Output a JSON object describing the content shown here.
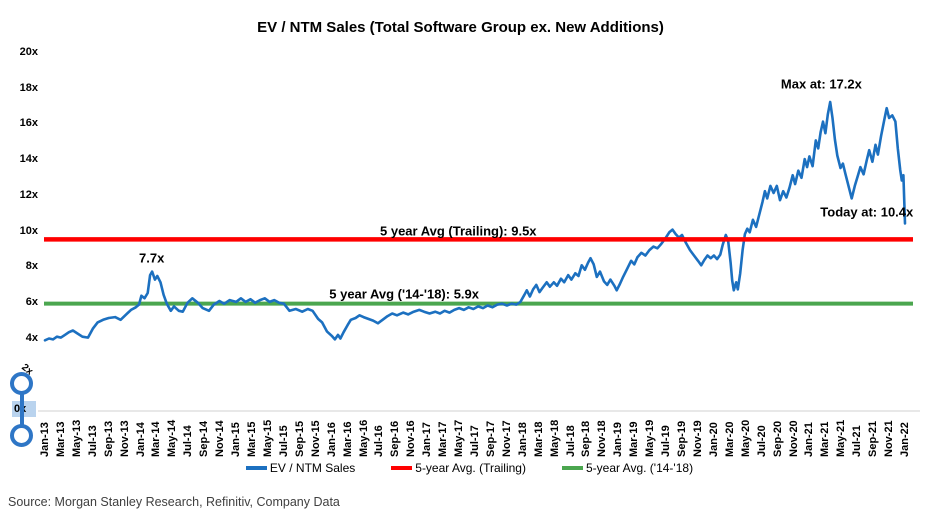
{
  "source": "Source: Morgan Stanley Research, Refinitiv, Company Data",
  "selection_artifact": {
    "displaced_tick": "2x",
    "highlighted_tick": "0x",
    "handle_color": "#2E76C6",
    "highlight_color": "#B9D3EE"
  },
  "chart_data": {
    "type": "line",
    "title": "EV / NTM Sales (Total Software Group ex. New Additions)",
    "grid": false,
    "plot_background": "#FFFFFF",
    "axis_line_color": "#D9D9D9",
    "y_axis": {
      "ylim": [
        0,
        20
      ],
      "tick_step": 2,
      "tick_labels": [
        "20x",
        "18x",
        "16x",
        "14x",
        "12x",
        "10x",
        "8x",
        "6x",
        "4x",
        "2x",
        "0x"
      ]
    },
    "x_axis": {
      "unit": "months (Jan-13 = 0)",
      "xlim_months": [
        0,
        108
      ],
      "tick_every_months": 2,
      "tick_labels": [
        "Jan-13",
        "Mar-13",
        "May-13",
        "Jul-13",
        "Sep-13",
        "Nov-13",
        "Jan-14",
        "Mar-14",
        "May-14",
        "Jul-14",
        "Sep-14",
        "Nov-14",
        "Jan-15",
        "Mar-15",
        "May-15",
        "Jul-15",
        "Sep-15",
        "Nov-15",
        "Jan-16",
        "Mar-16",
        "May-16",
        "Jul-16",
        "Sep-16",
        "Nov-16",
        "Jan-17",
        "Mar-17",
        "May-17",
        "Jul-17",
        "Sep-17",
        "Nov-17",
        "Jan-18",
        "Mar-18",
        "May-18",
        "Jul-18",
        "Sep-18",
        "Nov-18",
        "Jan-19",
        "Mar-19",
        "May-19",
        "Jul-19",
        "Sep-19",
        "Nov-19",
        "Jan-20",
        "Mar-20",
        "May-20",
        "Jul-20",
        "Sep-20",
        "Nov-20",
        "Jan-21",
        "Mar-21",
        "May-21",
        "Jul-21",
        "Sep-21",
        "Nov-21",
        "Jan-22"
      ]
    },
    "series": [
      {
        "id": "avg-14-18-line",
        "name": "5-year Avg. ('14-'18)",
        "type": "hline",
        "value": 5.9,
        "color": "#4BA64F",
        "width": 4,
        "z": 1
      },
      {
        "id": "ev-ntm-sales-line",
        "name": "EV / NTM Sales",
        "type": "line",
        "color": "#1C70C0",
        "width": 2.6,
        "z": 2,
        "points": [
          [
            0,
            3.85
          ],
          [
            0.5,
            3.95
          ],
          [
            1,
            3.9
          ],
          [
            1.5,
            4.05
          ],
          [
            2,
            4.0
          ],
          [
            2.5,
            4.15
          ],
          [
            3,
            4.3
          ],
          [
            3.5,
            4.4
          ],
          [
            4,
            4.25
          ],
          [
            4.7,
            4.05
          ],
          [
            5.4,
            4.0
          ],
          [
            6,
            4.5
          ],
          [
            6.6,
            4.85
          ],
          [
            7.3,
            5.0
          ],
          [
            8,
            5.1
          ],
          [
            8.8,
            5.15
          ],
          [
            9.5,
            5.0
          ],
          [
            10.2,
            5.3
          ],
          [
            10.8,
            5.55
          ],
          [
            11.4,
            5.7
          ],
          [
            11.8,
            5.85
          ],
          [
            12.1,
            6.35
          ],
          [
            12.5,
            6.2
          ],
          [
            12.9,
            6.5
          ],
          [
            13.2,
            7.5
          ],
          [
            13.45,
            7.7
          ],
          [
            13.8,
            7.25
          ],
          [
            14.1,
            7.45
          ],
          [
            14.5,
            7.1
          ],
          [
            14.9,
            6.4
          ],
          [
            15.3,
            5.9
          ],
          [
            15.8,
            5.5
          ],
          [
            16.2,
            5.75
          ],
          [
            16.8,
            5.5
          ],
          [
            17.3,
            5.45
          ],
          [
            17.9,
            5.95
          ],
          [
            18.5,
            6.2
          ],
          [
            19.2,
            5.95
          ],
          [
            19.8,
            5.65
          ],
          [
            20.6,
            5.5
          ],
          [
            21.2,
            5.85
          ],
          [
            21.9,
            6.05
          ],
          [
            22.5,
            5.9
          ],
          [
            23.2,
            6.1
          ],
          [
            24,
            6.0
          ],
          [
            24.6,
            6.2
          ],
          [
            25.2,
            6.0
          ],
          [
            25.8,
            6.15
          ],
          [
            26.4,
            5.95
          ],
          [
            27,
            6.1
          ],
          [
            27.6,
            6.2
          ],
          [
            28.2,
            6.0
          ],
          [
            28.8,
            6.1
          ],
          [
            29.4,
            5.95
          ],
          [
            30,
            5.9
          ],
          [
            30.7,
            5.5
          ],
          [
            31.5,
            5.6
          ],
          [
            32.3,
            5.45
          ],
          [
            33,
            5.6
          ],
          [
            33.6,
            5.5
          ],
          [
            34.3,
            5.05
          ],
          [
            34.8,
            4.85
          ],
          [
            35.4,
            4.35
          ],
          [
            36,
            4.1
          ],
          [
            36.4,
            3.9
          ],
          [
            36.8,
            4.15
          ],
          [
            37.1,
            3.95
          ],
          [
            37.5,
            4.3
          ],
          [
            38,
            4.7
          ],
          [
            38.4,
            5.0
          ],
          [
            39,
            5.1
          ],
          [
            39.5,
            5.25
          ],
          [
            40,
            5.15
          ],
          [
            40.6,
            5.05
          ],
          [
            41.2,
            4.95
          ],
          [
            41.8,
            4.8
          ],
          [
            42.4,
            5.0
          ],
          [
            43,
            5.2
          ],
          [
            43.6,
            5.35
          ],
          [
            44.2,
            5.25
          ],
          [
            45,
            5.4
          ],
          [
            45.6,
            5.3
          ],
          [
            46.3,
            5.45
          ],
          [
            47,
            5.55
          ],
          [
            47.6,
            5.45
          ],
          [
            48.3,
            5.35
          ],
          [
            49,
            5.45
          ],
          [
            49.6,
            5.35
          ],
          [
            50.2,
            5.5
          ],
          [
            50.8,
            5.4
          ],
          [
            51.4,
            5.55
          ],
          [
            52,
            5.65
          ],
          [
            52.6,
            5.55
          ],
          [
            53.2,
            5.7
          ],
          [
            53.8,
            5.6
          ],
          [
            54.4,
            5.75
          ],
          [
            55,
            5.65
          ],
          [
            55.6,
            5.8
          ],
          [
            56.2,
            5.7
          ],
          [
            56.8,
            5.85
          ],
          [
            57.4,
            5.9
          ],
          [
            58,
            5.8
          ],
          [
            58.6,
            5.9
          ],
          [
            59.2,
            5.85
          ],
          [
            59.7,
            6.0
          ],
          [
            60.2,
            6.4
          ],
          [
            60.5,
            6.65
          ],
          [
            60.9,
            6.3
          ],
          [
            61.3,
            6.7
          ],
          [
            61.7,
            6.95
          ],
          [
            62.1,
            6.55
          ],
          [
            62.5,
            6.8
          ],
          [
            63,
            7.1
          ],
          [
            63.4,
            6.85
          ],
          [
            63.9,
            7.1
          ],
          [
            64.3,
            6.9
          ],
          [
            64.8,
            7.3
          ],
          [
            65.2,
            7.1
          ],
          [
            65.7,
            7.5
          ],
          [
            66.1,
            7.25
          ],
          [
            66.6,
            7.6
          ],
          [
            67,
            7.45
          ],
          [
            67.4,
            8.05
          ],
          [
            67.8,
            7.8
          ],
          [
            68.2,
            8.2
          ],
          [
            68.5,
            8.45
          ],
          [
            68.9,
            8.1
          ],
          [
            69.3,
            7.4
          ],
          [
            69.7,
            7.7
          ],
          [
            70.2,
            7.15
          ],
          [
            70.6,
            6.95
          ],
          [
            71,
            7.25
          ],
          [
            71.5,
            6.9
          ],
          [
            71.8,
            6.65
          ],
          [
            72.2,
            7.0
          ],
          [
            72.6,
            7.4
          ],
          [
            73.1,
            7.85
          ],
          [
            73.6,
            8.3
          ],
          [
            74,
            8.1
          ],
          [
            74.4,
            8.5
          ],
          [
            74.9,
            8.75
          ],
          [
            75.4,
            8.6
          ],
          [
            75.9,
            8.9
          ],
          [
            76.4,
            9.1
          ],
          [
            76.9,
            9.0
          ],
          [
            77.4,
            9.25
          ],
          [
            77.9,
            9.55
          ],
          [
            78.4,
            9.9
          ],
          [
            78.8,
            10.05
          ],
          [
            79.2,
            9.8
          ],
          [
            79.6,
            9.6
          ],
          [
            80,
            9.75
          ],
          [
            80.5,
            9.3
          ],
          [
            81,
            8.9
          ],
          [
            81.5,
            8.6
          ],
          [
            82,
            8.3
          ],
          [
            82.4,
            8.05
          ],
          [
            82.8,
            8.35
          ],
          [
            83.2,
            8.6
          ],
          [
            83.6,
            8.45
          ],
          [
            84,
            8.6
          ],
          [
            84.4,
            8.4
          ],
          [
            84.8,
            8.65
          ],
          [
            85.1,
            9.2
          ],
          [
            85.5,
            9.75
          ],
          [
            85.8,
            9.4
          ],
          [
            86.1,
            8.2
          ],
          [
            86.3,
            7.2
          ],
          [
            86.5,
            6.65
          ],
          [
            86.8,
            7.1
          ],
          [
            87,
            6.7
          ],
          [
            87.3,
            7.6
          ],
          [
            87.6,
            8.9
          ],
          [
            87.9,
            9.8
          ],
          [
            88.2,
            10.1
          ],
          [
            88.5,
            9.9
          ],
          [
            88.9,
            10.6
          ],
          [
            89.3,
            10.2
          ],
          [
            89.7,
            10.9
          ],
          [
            90.1,
            11.6
          ],
          [
            90.4,
            12.2
          ],
          [
            90.7,
            11.8
          ],
          [
            91.1,
            12.5
          ],
          [
            91.5,
            12.1
          ],
          [
            91.9,
            12.5
          ],
          [
            92.3,
            11.7
          ],
          [
            92.7,
            12.2
          ],
          [
            93.1,
            11.85
          ],
          [
            93.5,
            12.4
          ],
          [
            93.9,
            13.1
          ],
          [
            94.2,
            12.6
          ],
          [
            94.6,
            13.35
          ],
          [
            95,
            12.95
          ],
          [
            95.4,
            14.0
          ],
          [
            95.7,
            13.55
          ],
          [
            96,
            14.15
          ],
          [
            96.4,
            13.6
          ],
          [
            96.8,
            15.05
          ],
          [
            97.1,
            14.6
          ],
          [
            97.4,
            15.5
          ],
          [
            97.7,
            16.1
          ],
          [
            98,
            15.45
          ],
          [
            98.3,
            16.5
          ],
          [
            98.6,
            17.2
          ],
          [
            98.9,
            16.3
          ],
          [
            99.2,
            15.1
          ],
          [
            99.5,
            14.2
          ],
          [
            99.9,
            13.5
          ],
          [
            100.2,
            13.75
          ],
          [
            100.5,
            13.2
          ],
          [
            100.9,
            12.5
          ],
          [
            101.3,
            11.8
          ],
          [
            101.7,
            12.5
          ],
          [
            102.1,
            13.1
          ],
          [
            102.4,
            13.55
          ],
          [
            102.8,
            13.15
          ],
          [
            103.2,
            13.95
          ],
          [
            103.5,
            14.5
          ],
          [
            103.9,
            13.85
          ],
          [
            104.3,
            14.8
          ],
          [
            104.6,
            14.25
          ],
          [
            105,
            15.3
          ],
          [
            105.4,
            16.2
          ],
          [
            105.7,
            16.85
          ],
          [
            106,
            16.3
          ],
          [
            106.4,
            16.45
          ],
          [
            106.8,
            16.1
          ],
          [
            107.1,
            14.6
          ],
          [
            107.4,
            13.4
          ],
          [
            107.6,
            12.8
          ],
          [
            107.8,
            13.1
          ],
          [
            108,
            10.4
          ]
        ]
      },
      {
        "id": "avg-trailing-line",
        "name": "5-year Avg. (Trailing)",
        "type": "hline",
        "value": 9.5,
        "color": "#FF0000",
        "width": 4.5,
        "z": 3
      }
    ],
    "annotations": [
      {
        "text": "7.7x",
        "m": 13.4,
        "v": 8.45
      },
      {
        "text": "5 year Avg (Trailing): 9.5x",
        "m": 51.9,
        "v": 9.97
      },
      {
        "text": "5 year Avg ('14-'18): 5.9x",
        "m": 45.1,
        "v": 6.45
      },
      {
        "text": "Max at: 17.2x",
        "m": 97.5,
        "v": 18.2
      },
      {
        "text": "Today at: 10.4x",
        "m": 103.2,
        "v": 11.05
      }
    ],
    "legend": {
      "position": "bottom",
      "items": [
        {
          "label": "EV / NTM Sales",
          "color": "#1C70C0"
        },
        {
          "label": "5-year Avg. (Trailing)",
          "color": "#FF0000"
        },
        {
          "label": "5-year Avg. ('14-'18)",
          "color": "#4BA64F"
        }
      ]
    }
  }
}
